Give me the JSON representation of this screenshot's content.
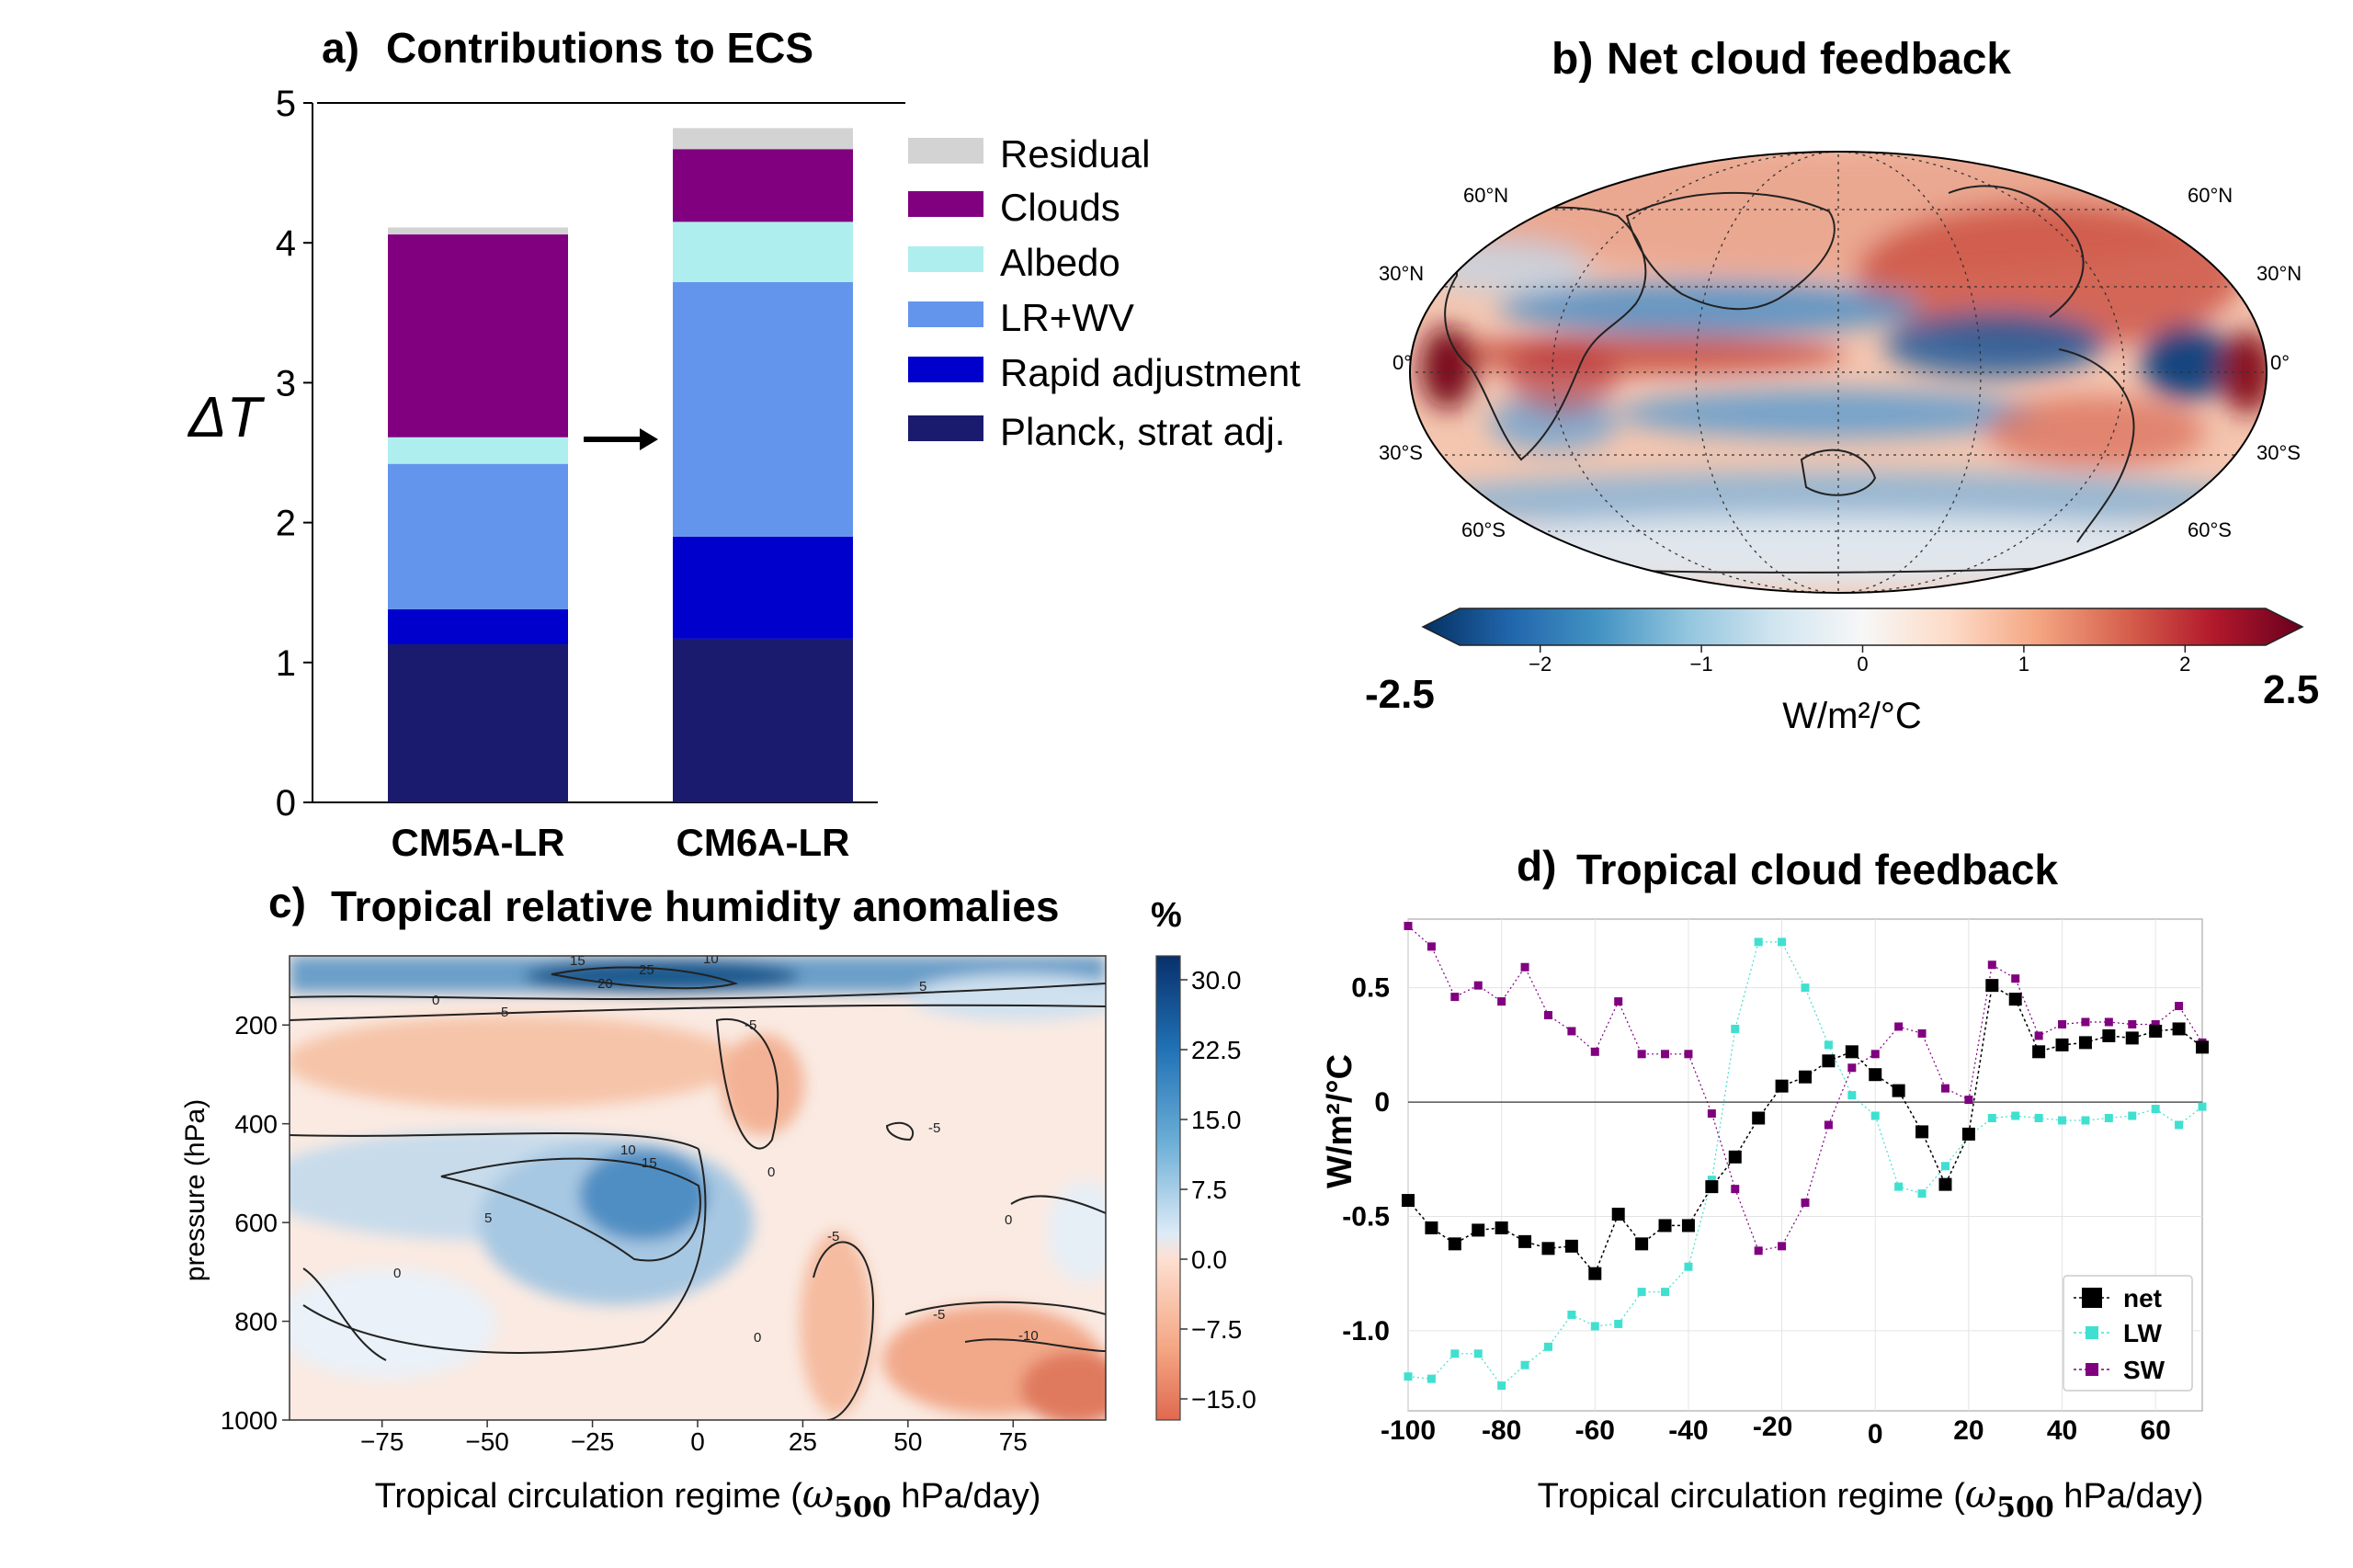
{
  "panels": {
    "a": {
      "letter": "a)",
      "title": "Contributions to ECS",
      "ylabel": "ΔT",
      "chart_data": {
        "type": "bar",
        "stacked": true,
        "categories": [
          "CM5A-LR",
          "CM6A-LR"
        ],
        "ylim": [
          0,
          5
        ],
        "yticks": [
          0,
          1,
          2,
          3,
          4,
          5
        ],
        "legend_position": "right",
        "series": [
          {
            "name": "Planck, strat adj.",
            "color": "#1a1a6e",
            "values": [
              1.13,
              1.17
            ]
          },
          {
            "name": "Rapid adjustment",
            "color": "#0000cd",
            "values": [
              0.25,
              0.73
            ]
          },
          {
            "name": "LR+WV",
            "color": "#6495ed",
            "values": [
              1.04,
              1.82
            ]
          },
          {
            "name": "Albedo",
            "color": "#afeeee",
            "values": [
              0.19,
              0.43
            ]
          },
          {
            "name": "Clouds",
            "color": "#800080",
            "values": [
              1.45,
              0.52
            ]
          },
          {
            "name": "Residual",
            "color": "#d3d3d3",
            "values": [
              0.05,
              0.15
            ]
          }
        ]
      }
    },
    "b": {
      "letter": "b)",
      "title": "Net cloud feedback",
      "colorbar_label": "W/m²/°C",
      "colorbar_min_label": "-2.5",
      "colorbar_max_label": "2.5",
      "chart_data": {
        "type": "heatmap",
        "projection": "global map",
        "colorbar_range": [
          -2.5,
          2.5
        ],
        "colorbar_ticks": [
          "−2",
          "−1",
          "0",
          "1",
          "2"
        ],
        "lat_labels_left": [
          "60°N",
          "30°N",
          "0°",
          "30°S",
          "60°S"
        ],
        "lat_labels_right": [
          "60°N",
          "30°N",
          "0°",
          "30°S",
          "60°S"
        ],
        "colormap": [
          "#053061",
          "#2166ac",
          "#4393c3",
          "#92c5de",
          "#d1e5f0",
          "#f7f7f7",
          "#fddbc7",
          "#f4a582",
          "#d6604d",
          "#b2182b",
          "#67001f"
        ]
      }
    },
    "c": {
      "letter": "c)",
      "title": "Tropical relative humidity anomalies",
      "colorbar_unit": "%",
      "ylabel": "pressure (hPa)",
      "xlabel_prefix": "Tropical circulation regime (",
      "xlabel_symbol": "ω",
      "xlabel_sub": "500",
      "xlabel_suffix": " hPa/day)",
      "chart_data": {
        "type": "heatmap",
        "xticks": [
          "−75",
          "−50",
          "−25",
          "0",
          "25",
          "50",
          "75"
        ],
        "yticks": [
          "200",
          "400",
          "600",
          "800",
          "1000"
        ],
        "colorbar_ticks": [
          "30.0",
          "22.5",
          "15.0",
          "7.5",
          "0.0",
          "−7.5",
          "−15.0"
        ],
        "contour_labels": [
          "15",
          "25",
          "20",
          "10",
          "0",
          "-5",
          "-5",
          "5",
          "-5",
          "10",
          "15",
          "5",
          "0",
          "0",
          "-5",
          "0",
          "0",
          "-5",
          "-10"
        ]
      }
    },
    "d": {
      "letter": "d)",
      "title": "Tropical cloud feedback",
      "ylabel": "W/m²/°C",
      "xlabel_prefix": "Tropical circulation regime (",
      "xlabel_symbol": "ω",
      "xlabel_sub": "500",
      "xlabel_suffix": " hPa/day)",
      "chart_data": {
        "type": "line",
        "xlim": [
          -100,
          70
        ],
        "ylim": [
          -1.35,
          0.8
        ],
        "xticks": [
          "-100",
          "-80",
          "-60",
          "-40",
          "-20",
          "0",
          "20",
          "40",
          "60"
        ],
        "yticks": [
          "0.5",
          "0",
          "-0.5",
          "-1.0"
        ],
        "legend_position": "bottom-right",
        "x": [
          -100,
          -95,
          -90,
          -85,
          -80,
          -75,
          -70,
          -65,
          -60,
          -55,
          -50,
          -45,
          -40,
          -35,
          -30,
          -25,
          -20,
          -15,
          -10,
          -5,
          0,
          5,
          10,
          15,
          20,
          25,
          30,
          35,
          40,
          45,
          50,
          55,
          60,
          65,
          70
        ],
        "series": [
          {
            "name": "net",
            "color": "#000000",
            "values": [
              -0.43,
              -0.55,
              -0.62,
              -0.56,
              -0.55,
              -0.61,
              -0.64,
              -0.63,
              -0.75,
              -0.49,
              -0.62,
              -0.54,
              -0.54,
              -0.37,
              -0.24,
              -0.07,
              0.07,
              0.11,
              0.18,
              0.22,
              0.12,
              0.05,
              -0.13,
              -0.36,
              -0.14,
              0.51,
              0.45,
              0.22,
              0.25,
              0.26,
              0.29,
              0.28,
              0.31,
              0.32,
              0.24
            ]
          },
          {
            "name": "LW",
            "color": "#40e0d0",
            "values": [
              -1.2,
              -1.21,
              -1.1,
              -1.1,
              -1.24,
              -1.15,
              -1.07,
              -0.93,
              -0.98,
              -0.97,
              -0.83,
              -0.83,
              -0.72,
              -0.34,
              0.32,
              0.7,
              0.7,
              0.5,
              0.25,
              0.03,
              -0.06,
              -0.37,
              -0.4,
              -0.28,
              -0.15,
              -0.07,
              -0.06,
              -0.07,
              -0.08,
              -0.08,
              -0.07,
              -0.06,
              -0.03,
              -0.1,
              -0.02
            ]
          },
          {
            "name": "SW",
            "color": "#800080",
            "values": [
              0.77,
              0.68,
              0.46,
              0.51,
              0.44,
              0.59,
              0.38,
              0.31,
              0.22,
              0.44,
              0.21,
              0.21,
              0.21,
              -0.05,
              -0.38,
              -0.65,
              -0.63,
              -0.44,
              -0.1,
              0.15,
              0.21,
              0.33,
              0.3,
              0.06,
              0.01,
              0.6,
              0.54,
              0.29,
              0.34,
              0.35,
              0.35,
              0.34,
              0.34,
              0.42,
              0.26
            ]
          }
        ]
      }
    }
  }
}
